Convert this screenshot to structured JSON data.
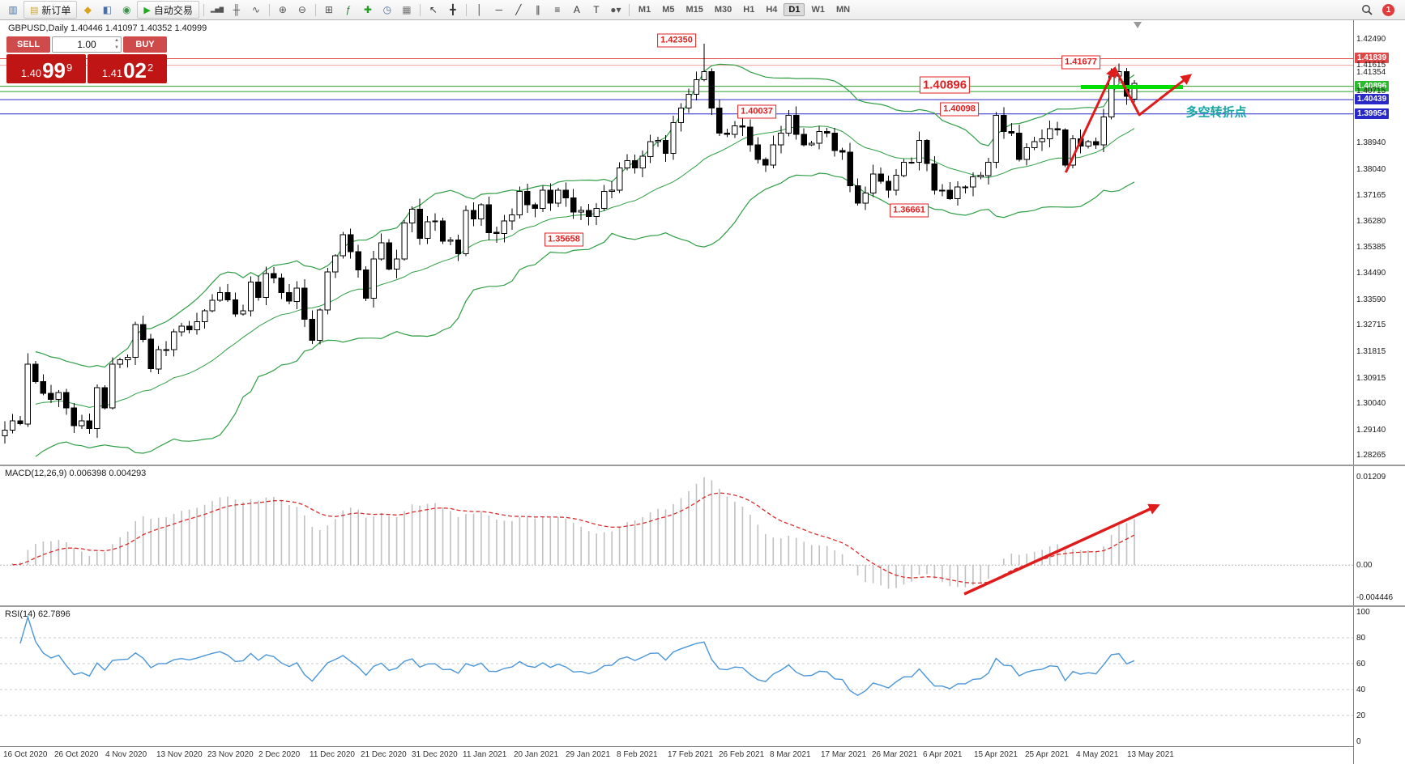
{
  "toolbar": {
    "timeframes": [
      "M1",
      "M5",
      "M15",
      "M30",
      "H1",
      "H4",
      "D1",
      "W1",
      "MN"
    ],
    "active_timeframe": "D1",
    "notification_count": "1",
    "icons": [
      {
        "t": "icon",
        "name": "new-chart-icon",
        "g": "▥",
        "c": "#4a6fa5"
      },
      {
        "t": "btn",
        "name": "new-order-button",
        "label": "新订单",
        "icon": "order-ticket-icon",
        "g": "▤",
        "c": "#caa53c"
      },
      {
        "t": "icon",
        "name": "market-watch-icon",
        "g": "◆",
        "c": "#d9a520"
      },
      {
        "t": "icon",
        "name": "data-window-icon",
        "g": "◧",
        "c": "#4a6fa5"
      },
      {
        "t": "icon",
        "name": "navigator-icon",
        "g": "◉",
        "c": "#3f8f4f"
      },
      {
        "t": "btn",
        "name": "autotrading-button",
        "label": "自动交易",
        "icon": "play-icon",
        "g": "▶",
        "c": "#1faa1f"
      },
      {
        "t": "sep"
      },
      {
        "t": "icon",
        "name": "bar-chart-icon",
        "g": "▂▅▇",
        "c": "#555555"
      },
      {
        "t": "icon",
        "name": "candlestick-icon",
        "g": "╫",
        "c": "#555555"
      },
      {
        "t": "icon",
        "name": "line-chart-icon",
        "g": "∿",
        "c": "#555555"
      },
      {
        "t": "sep"
      },
      {
        "t": "icon",
        "name": "zoom-in-icon",
        "g": "⊕",
        "c": "#555555"
      },
      {
        "t": "icon",
        "name": "zoom-out-icon",
        "g": "⊖",
        "c": "#555555"
      },
      {
        "t": "sep"
      },
      {
        "t": "icon",
        "name": "tile-windows-icon",
        "g": "⊞",
        "c": "#555555"
      },
      {
        "t": "icon",
        "name": "indicators-icon",
        "g": "ƒ",
        "c": "#2e7d32"
      },
      {
        "t": "icon",
        "name": "add-indicator-icon",
        "g": "✚",
        "c": "#1f9d1f"
      },
      {
        "t": "icon",
        "name": "periods-icon",
        "g": "◷",
        "c": "#4a6fa5"
      },
      {
        "t": "icon",
        "name": "templates-icon",
        "g": "▦",
        "c": "#777777"
      },
      {
        "t": "sep"
      },
      {
        "t": "icon",
        "name": "cursor-icon",
        "g": "↖",
        "c": "#333333"
      },
      {
        "t": "icon",
        "name": "crosshair-icon",
        "g": "╋",
        "c": "#333333"
      },
      {
        "t": "sep"
      },
      {
        "t": "icon",
        "name": "vertical-line-icon",
        "g": "│",
        "c": "#333333"
      },
      {
        "t": "icon",
        "name": "horizontal-line-icon",
        "g": "─",
        "c": "#333333"
      },
      {
        "t": "icon",
        "name": "trendline-icon",
        "g": "╱",
        "c": "#333333"
      },
      {
        "t": "icon",
        "name": "channel-icon",
        "g": "∥",
        "c": "#333333"
      },
      {
        "t": "icon",
        "name": "fibonacci-icon",
        "g": "≡",
        "c": "#333333"
      },
      {
        "t": "icon",
        "name": "text-icon",
        "g": "A",
        "c": "#333333"
      },
      {
        "t": "icon",
        "name": "arrows-icon",
        "g": "T",
        "c": "#333333"
      },
      {
        "t": "icon",
        "name": "shapes-icon",
        "g": "●▾",
        "c": "#555555"
      },
      {
        "t": "sep"
      }
    ]
  },
  "one_click": {
    "sell_label": "SELL",
    "buy_label": "BUY",
    "lot": "1.00",
    "sell_small": "1.40",
    "sell_big": "99",
    "sell_sup": "9",
    "buy_small": "1.41",
    "buy_big": "02",
    "buy_sup": "2"
  },
  "chart_data": {
    "type": "candlestick",
    "symbol": "GBPUSD",
    "timeframe": "Daily",
    "ohlc_line": "GBPUSD,Daily  1.40446 1.41097 1.40352 1.40999",
    "open": "1.40446",
    "high": "1.41097",
    "low": "1.40352",
    "close": "1.40999",
    "closes": [
      1.2915,
      1.2946,
      1.2936,
      1.314,
      1.308,
      1.304,
      1.302,
      1.3043,
      1.299,
      1.293,
      1.2947,
      1.292,
      1.306,
      1.299,
      1.314,
      1.3155,
      1.3163,
      1.3275,
      1.3225,
      1.3124,
      1.319,
      1.319,
      1.325,
      1.327,
      1.3258,
      1.3285,
      1.3322,
      1.3358,
      1.3385,
      1.336,
      1.3312,
      1.3322,
      1.342,
      1.3368,
      1.345,
      1.3435,
      1.3385,
      1.3355,
      1.34,
      1.3293,
      1.3222,
      1.3325,
      1.3455,
      1.351,
      1.3582,
      1.3524,
      1.3462,
      1.3365,
      1.35,
      1.3555,
      1.3465,
      1.35,
      1.3622,
      1.367,
      1.357,
      1.3626,
      1.363,
      1.356,
      1.3565,
      1.3518,
      1.3665,
      1.3636,
      1.3685,
      1.359,
      1.3587,
      1.363,
      1.365,
      1.373,
      1.3685,
      1.3672,
      1.3735,
      1.369,
      1.3735,
      1.3708,
      1.366,
      1.3665,
      1.3645,
      1.3672,
      1.373,
      1.3735,
      1.381,
      1.3835,
      1.381,
      1.385,
      1.39,
      1.3905,
      1.386,
      1.3965,
      1.4015,
      1.4062,
      1.4112,
      1.414,
      1.4015,
      1.393,
      1.3925,
      1.3955,
      1.395,
      1.389,
      1.384,
      1.382,
      1.389,
      1.393,
      1.399,
      1.3925,
      1.389,
      1.3895,
      1.3935,
      1.393,
      1.387,
      1.3865,
      1.375,
      1.369,
      1.3725,
      1.379,
      1.3765,
      1.3735,
      1.3785,
      1.383,
      1.383,
      1.3905,
      1.3825,
      1.3735,
      1.3735,
      1.3705,
      1.3745,
      1.3745,
      1.378,
      1.3785,
      1.383,
      1.399,
      1.3935,
      1.393,
      1.384,
      1.388,
      1.39,
      1.391,
      1.3945,
      1.394,
      1.382,
      1.391,
      1.3885,
      1.39,
      1.389,
      1.3985,
      1.4125,
      1.414,
      1.4055,
      1.41
    ],
    "overrides": {
      "3": {
        "h": 1.3177
      },
      "54": {
        "h": 1.3705
      },
      "91": {
        "h": 1.4235
      },
      "112": {
        "l": 1.3667
      },
      "145": {
        "h": 1.4167
      },
      "147": {
        "o": 1.4045,
        "h": 1.411,
        "l": 1.4035
      }
    },
    "time_labels": [
      "16 Oct 2020",
      "26 Oct 2020",
      "4 Nov 2020",
      "13 Nov 2020",
      "23 Nov 2020",
      "2 Dec 2020",
      "11 Dec 2020",
      "21 Dec 2020",
      "31 Dec 2020",
      "11 Jan 2021",
      "20 Jan 2021",
      "29 Jan 2021",
      "8 Feb 2021",
      "17 Feb 2021",
      "26 Feb 2021",
      "8 Mar 2021",
      "17 Mar 2021",
      "26 Mar 2021",
      "6 Apr 2021",
      "15 Apr 2021",
      "25 Apr 2021",
      "4 May 2021",
      "13 May 2021"
    ],
    "price_ticks": [
      {
        "v": "1.42490",
        "style": "plain"
      },
      {
        "v": "1.41839",
        "style": "red"
      },
      {
        "v": "1.41615",
        "style": "plain"
      },
      {
        "v": "1.41354",
        "style": "plain"
      },
      {
        "v": "1.40896",
        "style": "green"
      },
      {
        "v": "1.40715",
        "style": "plain"
      },
      {
        "v": "1.40439",
        "style": "blue"
      },
      {
        "v": "1.39954",
        "style": "blue"
      },
      {
        "v": "1.38940",
        "style": "plain"
      },
      {
        "v": "1.38040",
        "style": "plain"
      },
      {
        "v": "1.37165",
        "style": "plain"
      },
      {
        "v": "1.36280",
        "style": "plain"
      },
      {
        "v": "1.35385",
        "style": "plain"
      },
      {
        "v": "1.34490",
        "style": "plain"
      },
      {
        "v": "1.33590",
        "style": "plain"
      },
      {
        "v": "1.32715",
        "style": "plain"
      },
      {
        "v": "1.31815",
        "style": "plain"
      },
      {
        "v": "1.30915",
        "style": "plain"
      },
      {
        "v": "1.30040",
        "style": "plain"
      },
      {
        "v": "1.29140",
        "style": "plain"
      },
      {
        "v": "1.28265",
        "style": "plain"
      }
    ],
    "hlines": [
      {
        "p": 1.41839,
        "color": "#e04848",
        "w": 1
      },
      {
        "p": 1.41615,
        "color": "#f0a0a0",
        "w": 1
      },
      {
        "p": 1.40896,
        "color": "#2ca02c",
        "w": 1
      },
      {
        "p": 1.40715,
        "color": "#2ca02c",
        "w": 1
      },
      {
        "p": 1.40439,
        "color": "#2929c8",
        "w": 1
      },
      {
        "p": 1.39954,
        "color": "#2929c8",
        "w": 1
      }
    ],
    "tags": [
      {
        "text": "1.42350",
        "fx": 0.5,
        "p": 1.4245,
        "big": false
      },
      {
        "text": "1.40037",
        "fx": 0.559,
        "p": 1.4004,
        "big": false
      },
      {
        "text": "1.40098",
        "fx": 0.709,
        "p": 1.401,
        "big": false
      },
      {
        "text": "1.41677",
        "fx": 0.799,
        "p": 1.4172,
        "big": false
      },
      {
        "text": "1.40896",
        "fx": 0.698,
        "p": 1.4094,
        "big": true
      },
      {
        "text": "1.36661",
        "fx": 0.672,
        "p": 1.3666,
        "big": false
      },
      {
        "text": "1.35658",
        "fx": 0.417,
        "p": 1.3566,
        "big": false
      }
    ],
    "trend_arrows": [
      {
        "pts": [
          [
            0.7876,
            1.3795
          ],
          [
            0.8235,
            1.4148
          ]
        ]
      },
      {
        "pts": [
          [
            0.824,
            1.415
          ],
          [
            0.842,
            1.3992
          ],
          [
            0.879,
            1.4125
          ]
        ]
      }
    ],
    "support_segment": {
      "x1": 0.799,
      "x2": 0.8745,
      "p": 1.4087
    },
    "note_text": {
      "text": "多空转折点",
      "fx": 0.899,
      "p": 1.4002
    },
    "macd": {
      "label": "MACD(12,26,9)",
      "values": "0.006398 0.004293",
      "ticks": [
        {
          "v": 0.01209,
          "label": "0.01209"
        },
        {
          "v": 0,
          "label": "0.00"
        },
        {
          "v": -0.004446,
          "label": "-0.004446"
        }
      ],
      "arrow": [
        [
          0.7124,
          0.92
        ],
        [
          0.855,
          0.285
        ]
      ]
    },
    "rsi": {
      "label": "RSI(14)",
      "value": "62.7896",
      "ticks": [
        {
          "v": 100,
          "label": "100"
        },
        {
          "v": 80,
          "label": "80"
        },
        {
          "v": 60,
          "label": "60"
        },
        {
          "v": 40,
          "label": "40"
        },
        {
          "v": 20,
          "label": "20"
        },
        {
          "v": 0,
          "label": "0"
        }
      ],
      "levels": [
        80,
        60,
        40,
        20
      ]
    }
  },
  "colors": {
    "bull": "#ffffff",
    "bear": "#000000",
    "band": "#2e9e44",
    "rsi": "#4a96d9",
    "macd_signal": "#d92b2b",
    "macd_hist": "#c0c0c0",
    "arrow": "#e01b1b",
    "segment": "#00dd00",
    "note": "#18a7a7"
  }
}
